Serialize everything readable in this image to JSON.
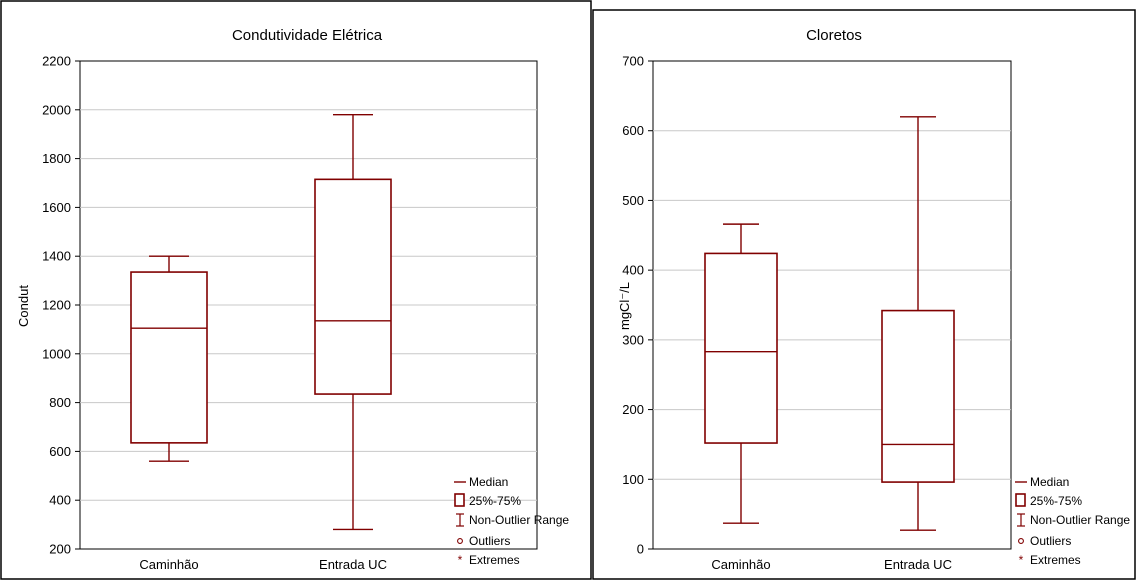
{
  "chart_data": [
    {
      "type": "box",
      "title": "Condutividade Elétrica",
      "xlabel": "",
      "ylabel": "Condut",
      "ylim": [
        200,
        2200
      ],
      "yticks": [
        200,
        400,
        600,
        800,
        1000,
        1200,
        1400,
        1600,
        1800,
        2000,
        2200
      ],
      "grid": true,
      "legend_position": "bottom-right, outside plot",
      "categories": [
        "Caminhão",
        "Entrada UC"
      ],
      "boxes": [
        {
          "category": "Caminhão",
          "min": 560,
          "q1": 635,
          "median": 1105,
          "q3": 1335,
          "max": 1400
        },
        {
          "category": "Entrada UC",
          "min": 280,
          "q1": 835,
          "median": 1135,
          "q3": 1715,
          "max": 1980
        }
      ],
      "legend": [
        "Median",
        "25%-75%",
        "Non-Outlier Range",
        "Outliers",
        "Extremes"
      ]
    },
    {
      "type": "box",
      "title": "Cloretos",
      "xlabel": "",
      "ylabel": "mgCl⁻/L",
      "ylim": [
        0,
        700
      ],
      "yticks": [
        0,
        100,
        200,
        300,
        400,
        500,
        600,
        700
      ],
      "grid": true,
      "legend_position": "bottom-right, outside plot",
      "categories": [
        "Caminhão",
        "Entrada UC"
      ],
      "boxes": [
        {
          "category": "Caminhão",
          "min": 37,
          "q1": 152,
          "median": 283,
          "q3": 424,
          "max": 466
        },
        {
          "category": "Entrada UC",
          "min": 27,
          "q1": 96,
          "median": 150,
          "q3": 342,
          "max": 620
        }
      ],
      "legend": [
        "Median",
        "25%-75%",
        "Non-Outlier Range",
        "Outliers",
        "Extremes"
      ]
    }
  ],
  "colors": {
    "box": "#800000",
    "grid": "#c8c8c8",
    "frame": "#000000"
  }
}
